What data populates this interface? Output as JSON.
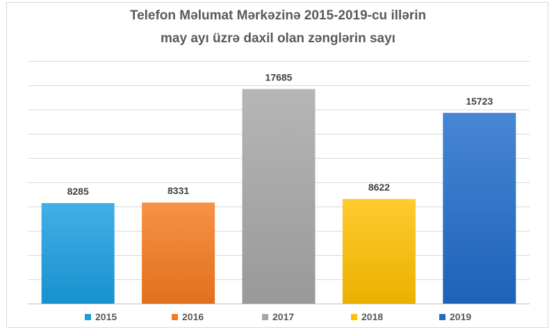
{
  "chart_data": {
    "type": "bar",
    "title": "Telefon Məlumat Mərkəzinə 2015-2019-cu illərin may ayı üzrə daxil olan zənglərin sayı",
    "title_lines": [
      "Telefon Məlumat Mərkəzinə 2015-2019-cu illərin",
      "may ayı üzrə daxil olan zənglərin sayı"
    ],
    "categories": [
      "2015",
      "2016",
      "2017",
      "2018",
      "2019"
    ],
    "values": [
      8285,
      8331,
      17685,
      8622,
      15723
    ],
    "value_labels": [
      "8285",
      "8331",
      "17685",
      "8622",
      "15723"
    ],
    "colors": [
      "#1a9ee0",
      "#f57a1f",
      "#a6a6a6",
      "#ffc000",
      "#1f6bc9"
    ],
    "ylim": [
      0,
      20000
    ],
    "ytick_step": 2000,
    "xlabel": "",
    "ylabel": "",
    "grid": true,
    "legend": "bottom",
    "legend_entries": [
      "2015",
      "2016",
      "2017",
      "2018",
      "2019"
    ]
  }
}
